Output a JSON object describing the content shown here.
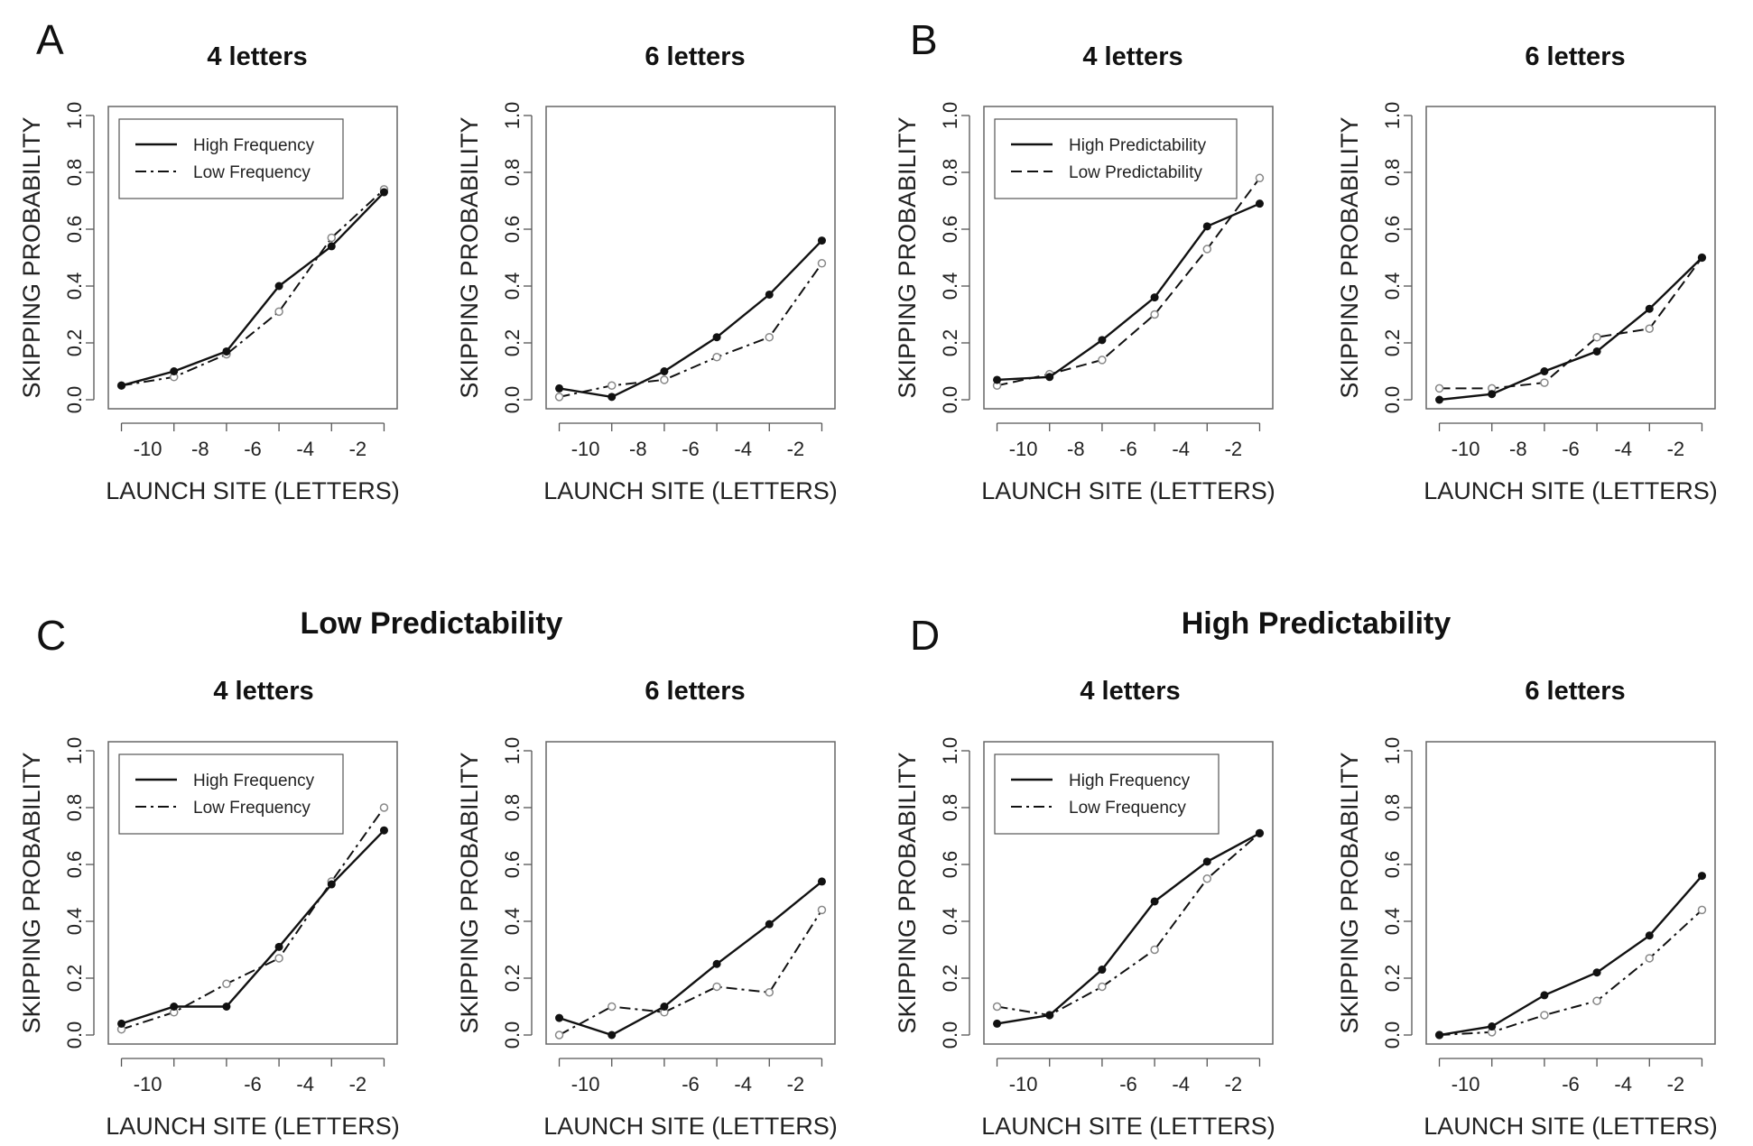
{
  "panels": [
    {
      "letter": "A",
      "group_title": ""
    },
    {
      "letter": "B",
      "group_title": ""
    },
    {
      "letter": "C",
      "group_title": "Low Predictability"
    },
    {
      "letter": "D",
      "group_title": "High Predictability"
    }
  ],
  "chart_data": [
    {
      "type": "line",
      "panel": "A",
      "title": "4 letters",
      "xlabel": "LAUNCH SITE (LETTERS)",
      "ylabel": "SKIPPING PROBABILITY",
      "xlim": [
        -11.5,
        -0.5
      ],
      "ylim": [
        0.0,
        1.0
      ],
      "xticks": [
        -10,
        -8,
        -6,
        -4,
        -2
      ],
      "yticks": [
        "0.0",
        "0.2",
        "0.4",
        "0.6",
        "0.8",
        "1.0"
      ],
      "legend": "top-left",
      "grid": false,
      "x": [
        -11,
        -9,
        -7,
        -5,
        -3,
        -1
      ],
      "series": [
        {
          "name": "High Frequency",
          "style": "solid",
          "values": [
            0.05,
            0.1,
            0.17,
            0.4,
            0.54,
            0.73
          ]
        },
        {
          "name": "Low Frequency",
          "style": "dashdot",
          "values": [
            0.05,
            0.08,
            0.16,
            0.31,
            0.57,
            0.74
          ]
        }
      ]
    },
    {
      "type": "line",
      "panel": "A",
      "title": "6 letters",
      "xlabel": "LAUNCH SITE (LETTERS)",
      "ylabel": "SKIPPING PROBABILITY",
      "xlim": [
        -11.5,
        -0.5
      ],
      "ylim": [
        0.0,
        1.0
      ],
      "xticks": [
        -10,
        -8,
        -6,
        -4,
        -2
      ],
      "yticks": [
        "0.0",
        "0.2",
        "0.4",
        "0.6",
        "0.8",
        "1.0"
      ],
      "legend": "none",
      "grid": false,
      "x": [
        -11,
        -9,
        -7,
        -5,
        -3,
        -1
      ],
      "series": [
        {
          "name": "",
          "style": "solid",
          "values": [
            0.04,
            0.01,
            0.1,
            0.22,
            0.37,
            0.56
          ]
        },
        {
          "name": "",
          "style": "dashdot",
          "values": [
            0.01,
            0.05,
            0.07,
            0.15,
            0.22,
            0.48
          ]
        }
      ]
    },
    {
      "type": "line",
      "panel": "B",
      "title": "4 letters",
      "xlabel": "LAUNCH SITE (LETTERS)",
      "ylabel": "SKIPPING PROBABILITY",
      "xlim": [
        -11.5,
        -0.5
      ],
      "ylim": [
        0.0,
        1.0
      ],
      "xticks": [
        -10,
        -8,
        -6,
        -4,
        -2
      ],
      "yticks": [
        "0.0",
        "0.2",
        "0.4",
        "0.6",
        "0.8",
        "1.0"
      ],
      "legend": "top-left",
      "grid": false,
      "x": [
        -11,
        -9,
        -7,
        -5,
        -3,
        -1
      ],
      "series": [
        {
          "name": "High Predictability",
          "style": "solid",
          "values": [
            0.07,
            0.08,
            0.21,
            0.36,
            0.61,
            0.69
          ]
        },
        {
          "name": "Low Predictability",
          "style": "dashed",
          "values": [
            0.05,
            0.09,
            0.14,
            0.3,
            0.53,
            0.78
          ]
        }
      ]
    },
    {
      "type": "line",
      "panel": "B",
      "title": "6 letters",
      "xlabel": "LAUNCH SITE (LETTERS)",
      "ylabel": "SKIPPING PROBABILITY",
      "xlim": [
        -11.5,
        -0.5
      ],
      "ylim": [
        0.0,
        1.0
      ],
      "xticks": [
        -10,
        -8,
        -6,
        -4,
        -2
      ],
      "yticks": [
        "0.0",
        "0.2",
        "0.4",
        "0.6",
        "0.8",
        "1.0"
      ],
      "legend": "none",
      "grid": false,
      "x": [
        -11,
        -9,
        -7,
        -5,
        -3,
        -1
      ],
      "series": [
        {
          "name": "",
          "style": "solid",
          "values": [
            0.0,
            0.02,
            0.1,
            0.17,
            0.32,
            0.5
          ]
        },
        {
          "name": "",
          "style": "dashed",
          "values": [
            0.04,
            0.04,
            0.06,
            0.22,
            0.25,
            0.5
          ]
        }
      ]
    },
    {
      "type": "line",
      "panel": "C",
      "title": "4 letters",
      "xlabel": "LAUNCH SITE (LETTERS)",
      "ylabel": "SKIPPING PROBABILITY",
      "xlim": [
        -11.5,
        -0.5
      ],
      "ylim": [
        0.0,
        1.0
      ],
      "xticks": [
        -10,
        -6,
        -4,
        -2
      ],
      "yticks": [
        "0.0",
        "0.2",
        "0.4",
        "0.6",
        "0.8",
        "1.0"
      ],
      "legend": "top-left",
      "grid": false,
      "x": [
        -11,
        -9,
        -7,
        -5,
        -3,
        -1
      ],
      "series": [
        {
          "name": "High Frequency",
          "style": "solid",
          "values": [
            0.04,
            0.1,
            0.1,
            0.31,
            0.53,
            0.72
          ]
        },
        {
          "name": "Low Frequency",
          "style": "dashdot",
          "values": [
            0.02,
            0.08,
            0.18,
            0.27,
            0.54,
            0.8
          ]
        }
      ]
    },
    {
      "type": "line",
      "panel": "C",
      "title": "6 letters",
      "xlabel": "LAUNCH SITE (LETTERS)",
      "ylabel": "SKIPPING PROBABILITY",
      "xlim": [
        -11.5,
        -0.5
      ],
      "ylim": [
        0.0,
        1.0
      ],
      "xticks": [
        -10,
        -6,
        -4,
        -2
      ],
      "yticks": [
        "0.0",
        "0.2",
        "0.4",
        "0.6",
        "0.8",
        "1.0"
      ],
      "legend": "none",
      "grid": false,
      "x": [
        -11,
        -9,
        -7,
        -5,
        -3,
        -1
      ],
      "series": [
        {
          "name": "",
          "style": "solid",
          "values": [
            0.06,
            0.0,
            0.1,
            0.25,
            0.39,
            0.54
          ]
        },
        {
          "name": "",
          "style": "dashdot",
          "values": [
            0.0,
            0.1,
            0.08,
            0.17,
            0.15,
            0.44
          ]
        }
      ]
    },
    {
      "type": "line",
      "panel": "D",
      "title": "4 letters",
      "xlabel": "LAUNCH SITE (LETTERS)",
      "ylabel": "SKIPPING PROBABILITY",
      "xlim": [
        -11.5,
        -0.5
      ],
      "ylim": [
        0.0,
        1.0
      ],
      "xticks": [
        -10,
        -6,
        -4,
        -2
      ],
      "yticks": [
        "0.0",
        "0.2",
        "0.4",
        "0.6",
        "0.8",
        "1.0"
      ],
      "legend": "top-left",
      "grid": false,
      "x": [
        -11,
        -9,
        -7,
        -5,
        -3,
        -1
      ],
      "series": [
        {
          "name": "High Frequency",
          "style": "solid",
          "values": [
            0.04,
            0.07,
            0.23,
            0.47,
            0.61,
            0.71
          ]
        },
        {
          "name": "Low Frequency",
          "style": "dashdot",
          "values": [
            0.1,
            0.07,
            0.17,
            0.3,
            0.55,
            0.71
          ]
        }
      ]
    },
    {
      "type": "line",
      "panel": "D",
      "title": "6 letters",
      "xlabel": "LAUNCH SITE (LETTERS)",
      "ylabel": "SKIPPING PROBABILITY",
      "xlim": [
        -11.5,
        -0.5
      ],
      "ylim": [
        0.0,
        1.0
      ],
      "xticks": [
        -10,
        -6,
        -4,
        -2
      ],
      "yticks": [
        "0.0",
        "0.2",
        "0.4",
        "0.6",
        "0.8",
        "1.0"
      ],
      "legend": "none",
      "grid": false,
      "x": [
        -11,
        -9,
        -7,
        -5,
        -3,
        -1
      ],
      "series": [
        {
          "name": "",
          "style": "solid",
          "values": [
            0.0,
            0.03,
            0.14,
            0.22,
            0.35,
            0.56
          ]
        },
        {
          "name": "",
          "style": "dashdot",
          "values": [
            0.0,
            0.01,
            0.07,
            0.12,
            0.27,
            0.44
          ]
        }
      ]
    }
  ]
}
